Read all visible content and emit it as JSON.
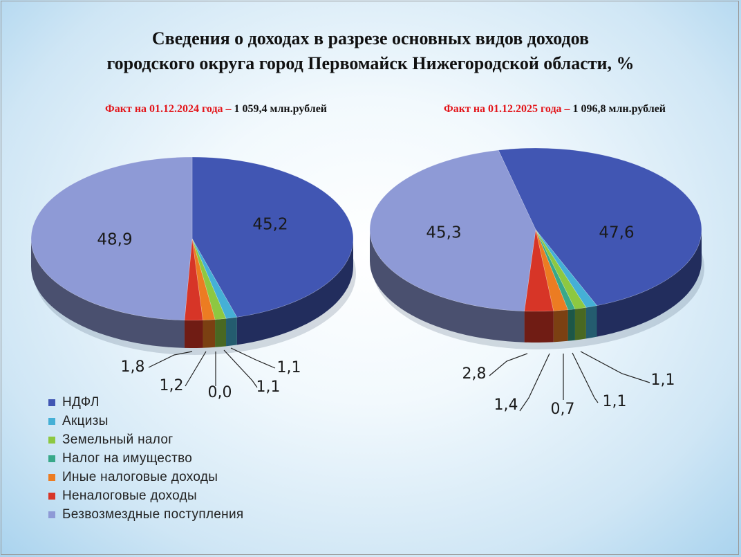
{
  "title": {
    "line1": "Сведения о доходах в разрезе основных видов доходов",
    "line2": "городского округа город Первомайск  Нижегородской области, %"
  },
  "colors": {
    "НДФЛ": "#4156b3",
    "Акцизы": "#45b0d6",
    "Земельный налог": "#8dc841",
    "Налог на имущество": "#38a889",
    "Иные налоговые доходы": "#ec7c22",
    "Неналоговые доходы": "#d73527",
    "Безвозмездные поступления": "#8e9ad6"
  },
  "chart_data": [
    {
      "type": "pie",
      "subtitle_red": "Факт на 01.12.2024 года –",
      "subtitle_dark": " 1 059,4 млн.рублей",
      "categories": [
        "НДФЛ",
        "Акцизы",
        "Земельный налог",
        "Налог на имущество",
        "Иные налоговые доходы",
        "Неналоговые доходы",
        "Безвозмездные поступления"
      ],
      "values": [
        45.2,
        1.1,
        1.1,
        0.0,
        1.2,
        1.8,
        48.9
      ],
      "labels": [
        "45,2",
        "1,1",
        "1,1",
        "0,0",
        "1,2",
        "1,8",
        "48,9"
      ]
    },
    {
      "type": "pie",
      "subtitle_red": "Факт на 01.12.2025 года –",
      "subtitle_dark": " 1 096,8 млн.рублей",
      "categories": [
        "НДФЛ",
        "Акцизы",
        "Земельный налог",
        "Налог на имущество",
        "Иные налоговые доходы",
        "Неналоговые доходы",
        "Безвозмездные поступления"
      ],
      "values": [
        47.6,
        1.1,
        1.1,
        0.7,
        1.4,
        2.8,
        45.3
      ],
      "labels": [
        "47,6",
        "1,1",
        "1,1",
        "0,7",
        "1,4",
        "2,8",
        "45,3"
      ]
    }
  ],
  "legend": [
    "НДФЛ",
    "Акцизы",
    "Земельный налог",
    "Налог на имущество",
    "Иные налоговые доходы",
    "Неналоговые доходы",
    "Безвозмездные поступления"
  ]
}
